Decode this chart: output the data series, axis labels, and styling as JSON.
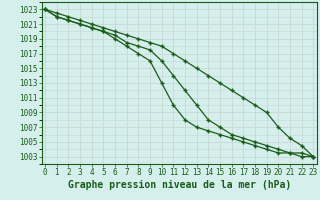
{
  "xlabel": "Graphe pression niveau de la mer (hPa)",
  "x": [
    0,
    1,
    2,
    3,
    4,
    5,
    6,
    7,
    8,
    9,
    10,
    11,
    12,
    13,
    14,
    15,
    16,
    17,
    18,
    19,
    20,
    21,
    22,
    23
  ],
  "line1": [
    1023,
    1022.5,
    1022,
    1021.5,
    1021,
    1020.5,
    1020,
    1019.5,
    1019,
    1018.5,
    1018,
    1017,
    1016,
    1015,
    1014,
    1013,
    1012,
    1011,
    1010,
    1009,
    1007,
    1005.5,
    1004.5,
    1003
  ],
  "line2": [
    1023,
    1022,
    1021.5,
    1021,
    1020.5,
    1020,
    1019.5,
    1018.5,
    1018,
    1017.5,
    1016,
    1014,
    1012,
    1010,
    1008,
    1007,
    1006,
    1005.5,
    1005,
    1004.5,
    1004,
    1003.5,
    1003.5,
    1003
  ],
  "line3": [
    1023,
    1022,
    1021.5,
    1021,
    1020.5,
    1020,
    1019,
    1018,
    1017,
    1016,
    1013,
    1010,
    1008,
    1007,
    1006.5,
    1006,
    1005.5,
    1005,
    1004.5,
    1004,
    1003.5,
    1003.5,
    1003,
    1003
  ],
  "ylim_min": 1002,
  "ylim_max": 1024,
  "yticks": [
    1003,
    1005,
    1007,
    1009,
    1011,
    1013,
    1015,
    1017,
    1019,
    1021,
    1023
  ],
  "xticks": [
    0,
    1,
    2,
    3,
    4,
    5,
    6,
    7,
    8,
    9,
    10,
    11,
    12,
    13,
    14,
    15,
    16,
    17,
    18,
    19,
    20,
    21,
    22,
    23
  ],
  "bg_color": "#d5efed",
  "grid_color": "#c8d8d4",
  "line_color": "#1a5c1a",
  "marker": "+",
  "xlabel_fontsize": 7,
  "tick_fontsize": 5.5,
  "line_width": 0.9
}
